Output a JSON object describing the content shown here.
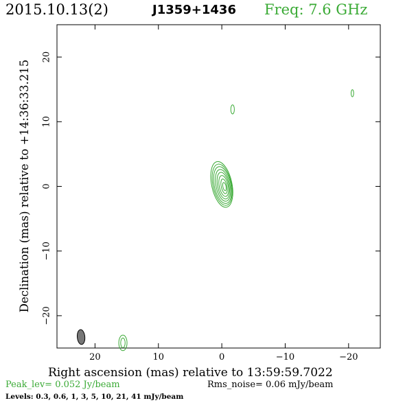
{
  "header": {
    "date": "2015.10.13(2)",
    "source": "J1359+1436",
    "freq": "Freq: 7.6 GHz"
  },
  "axes": {
    "xlabel": "Right ascension (mas) relative to 13:59:59.7022",
    "ylabel": "Declination (mas) relative to +14:36:33.215"
  },
  "footer": {
    "peak": "Peak_lev=  0.052 Jy/beam",
    "rms": "Rms_noise= 0.06 mJy/beam",
    "levels": "Levels: 0.3, 0.6,    1,    3,    5,  10,  21,  41 mJy/beam"
  },
  "colors": {
    "contour": "#3aaa35",
    "beam_fill": "#777777",
    "axis": "#000000"
  },
  "chart_data": {
    "type": "contour",
    "x_reversed": true,
    "xlim": [
      26,
      -25
    ],
    "ylim": [
      -25,
      25
    ],
    "xticks": [
      20,
      10,
      0,
      -10,
      -20
    ],
    "xtick_labels": [
      "20",
      "10",
      "0",
      "−10",
      "−20"
    ],
    "yticks": [
      20,
      10,
      0,
      -10,
      -20
    ],
    "ytick_labels": [
      "20",
      "10",
      "0",
      "−10",
      "−20"
    ],
    "levels_mJy": [
      0.3,
      0.6,
      1,
      3,
      5,
      10,
      21,
      41
    ],
    "peak_Jy_per_beam": 0.052,
    "rms_mJy_per_beam": 0.06,
    "core": {
      "x": 0.0,
      "y": 0.3,
      "contour_semi_axes": [
        [
          1.6,
          3.6
        ],
        [
          1.45,
          3.25
        ],
        [
          1.3,
          2.9
        ],
        [
          1.1,
          2.5
        ],
        [
          0.9,
          2.1
        ],
        [
          0.7,
          1.65
        ],
        [
          0.45,
          1.15
        ],
        [
          0.25,
          0.65
        ]
      ],
      "position_angle_deg": -12
    },
    "components": [
      {
        "name": "",
        "x": -1.7,
        "y": 11.9,
        "semi_axes": [
          [
            0.28,
            0.7
          ]
        ]
      },
      {
        "name": "",
        "x": -20.6,
        "y": 14.4,
        "semi_axes": [
          [
            0.2,
            0.55
          ]
        ]
      },
      {
        "name": "",
        "x": 15.6,
        "y": -24.2,
        "semi_axes": [
          [
            0.65,
            1.2
          ],
          [
            0.35,
            0.75
          ]
        ]
      }
    ],
    "beam": {
      "x": 22.2,
      "y": -23.3,
      "semi_axes": [
        0.6,
        1.15
      ],
      "position_angle_deg": -5
    }
  }
}
